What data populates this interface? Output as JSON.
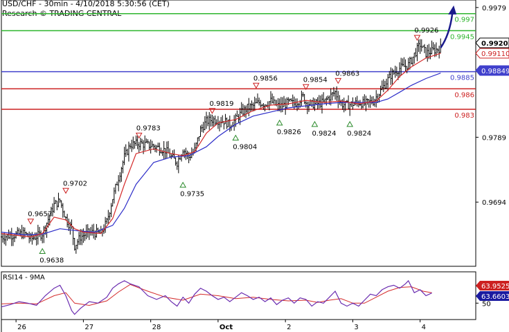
{
  "header": {
    "line1": "USD/CHF - 30min - 4/10/2018 5:30:56 (CET)",
    "line2": "Research © TRADING CENTRAL"
  },
  "colors": {
    "candle": "#000000",
    "ma_fast": "#d42a2a",
    "ma_slow": "#2c2cc8",
    "target": "#2db52d",
    "pivot": "#4040cc",
    "support": "#cc2020",
    "arrow": "#1a1a8c",
    "rsi": "#6a2cb0",
    "rsi_ma": "#d42a2a",
    "up_marker": "#2a8a2a",
    "down_marker": "#cc2020"
  },
  "chart_data": {
    "type": "candlestick",
    "symbol": "USD/CHF",
    "timeframe": "30min",
    "price_axis": {
      "ylim": [
        0.96,
        0.999
      ],
      "ticks": [
        "0.9979",
        "0.9789",
        "0.9694"
      ]
    },
    "x_labels": [
      {
        "label": "26",
        "t": 5
      },
      {
        "label": "27",
        "t": 28
      },
      {
        "label": "28",
        "t": 51
      },
      {
        "label": "Oct",
        "t": 74
      },
      {
        "label": "2",
        "t": 97
      },
      {
        "label": "3",
        "t": 120
      },
      {
        "label": "4",
        "t": 143
      }
    ],
    "price_path": [
      [
        0,
        0.9643
      ],
      [
        4,
        0.9646
      ],
      [
        8,
        0.9648
      ],
      [
        10,
        0.964
      ],
      [
        14,
        0.9648
      ],
      [
        18,
        0.969
      ],
      [
        20,
        0.9696
      ],
      [
        22,
        0.967
      ],
      [
        24,
        0.9655
      ],
      [
        25,
        0.963
      ],
      [
        27,
        0.9643
      ],
      [
        30,
        0.965
      ],
      [
        34,
        0.9648
      ],
      [
        36,
        0.9665
      ],
      [
        38,
        0.97
      ],
      [
        40,
        0.973
      ],
      [
        42,
        0.976
      ],
      [
        44,
        0.9778
      ],
      [
        47,
        0.978
      ],
      [
        52,
        0.9776
      ],
      [
        56,
        0.977
      ],
      [
        58,
        0.976
      ],
      [
        60,
        0.9752
      ],
      [
        62,
        0.9772
      ],
      [
        64,
        0.976
      ],
      [
        66,
        0.977
      ],
      [
        68,
        0.98
      ],
      [
        70,
        0.9812
      ],
      [
        72,
        0.9815
      ],
      [
        76,
        0.9813
      ],
      [
        78,
        0.9807
      ],
      [
        80,
        0.9815
      ],
      [
        82,
        0.9825
      ],
      [
        84,
        0.9832
      ],
      [
        86,
        0.9835
      ],
      [
        88,
        0.984
      ],
      [
        90,
        0.9838
      ],
      [
        92,
        0.9842
      ],
      [
        94,
        0.9835
      ],
      [
        96,
        0.9835
      ],
      [
        98,
        0.984
      ],
      [
        100,
        0.9838
      ],
      [
        103,
        0.9848
      ],
      [
        104,
        0.984
      ],
      [
        106,
        0.9837
      ],
      [
        110,
        0.984
      ],
      [
        112,
        0.9848
      ],
      [
        114,
        0.9855
      ],
      [
        116,
        0.9838
      ],
      [
        118,
        0.9836
      ],
      [
        122,
        0.984
      ],
      [
        124,
        0.9838
      ],
      [
        127,
        0.9842
      ],
      [
        130,
        0.986
      ],
      [
        133,
        0.988
      ],
      [
        136,
        0.989
      ],
      [
        139,
        0.9895
      ],
      [
        141,
        0.991
      ],
      [
        143,
        0.9925
      ],
      [
        145,
        0.9912
      ],
      [
        147,
        0.9915
      ],
      [
        150,
        0.992
      ]
    ],
    "ma_fast_path": [
      [
        0,
        0.9648
      ],
      [
        6,
        0.9645
      ],
      [
        10,
        0.9643
      ],
      [
        14,
        0.9648
      ],
      [
        18,
        0.9672
      ],
      [
        22,
        0.9668
      ],
      [
        25,
        0.9655
      ],
      [
        28,
        0.965
      ],
      [
        34,
        0.9648
      ],
      [
        38,
        0.967
      ],
      [
        42,
        0.972
      ],
      [
        46,
        0.9765
      ],
      [
        52,
        0.9772
      ],
      [
        58,
        0.9765
      ],
      [
        62,
        0.9762
      ],
      [
        66,
        0.9768
      ],
      [
        70,
        0.9795
      ],
      [
        74,
        0.981
      ],
      [
        80,
        0.9815
      ],
      [
        86,
        0.9828
      ],
      [
        92,
        0.9836
      ],
      [
        98,
        0.9838
      ],
      [
        104,
        0.9843
      ],
      [
        110,
        0.984
      ],
      [
        116,
        0.9842
      ],
      [
        122,
        0.9838
      ],
      [
        128,
        0.9842
      ],
      [
        132,
        0.9858
      ],
      [
        136,
        0.9878
      ],
      [
        140,
        0.9892
      ],
      [
        145,
        0.9905
      ],
      [
        150,
        0.9912
      ]
    ],
    "ma_slow_path": [
      [
        0,
        0.965
      ],
      [
        8,
        0.9646
      ],
      [
        14,
        0.9647
      ],
      [
        20,
        0.9655
      ],
      [
        26,
        0.9652
      ],
      [
        32,
        0.965
      ],
      [
        38,
        0.966
      ],
      [
        42,
        0.9685
      ],
      [
        46,
        0.972
      ],
      [
        52,
        0.9752
      ],
      [
        58,
        0.976
      ],
      [
        64,
        0.9762
      ],
      [
        70,
        0.9775
      ],
      [
        74,
        0.979
      ],
      [
        80,
        0.9808
      ],
      [
        86,
        0.982
      ],
      [
        92,
        0.9826
      ],
      [
        98,
        0.9832
      ],
      [
        104,
        0.9835
      ],
      [
        110,
        0.9838
      ],
      [
        116,
        0.984
      ],
      [
        122,
        0.984
      ],
      [
        128,
        0.984
      ],
      [
        132,
        0.9845
      ],
      [
        136,
        0.9855
      ],
      [
        140,
        0.9865
      ],
      [
        145,
        0.9875
      ],
      [
        150,
        0.9883
      ]
    ],
    "levels": [
      {
        "name": "target",
        "value": 0.997,
        "label": "0.997",
        "color": "#2db52d"
      },
      {
        "name": "target",
        "value": 0.9945,
        "label": "0.9945",
        "color": "#2db52d"
      },
      {
        "name": "pivot",
        "value": 0.9885,
        "label": "0.9885",
        "color": "#4040cc"
      },
      {
        "name": "resistance",
        "value": 0.986,
        "label": "0.986",
        "color": "#cc2020"
      },
      {
        "name": "resistance",
        "value": 0.983,
        "label": "0.983",
        "color": "#cc2020"
      }
    ],
    "price_badges": [
      {
        "value": 0.99202,
        "label": "0.99202",
        "style": "black"
      },
      {
        "value": 0.9911,
        "label": "0.99110",
        "style": "red"
      },
      {
        "value": 0.98849,
        "label": "0.98849",
        "style": "blue"
      }
    ],
    "projection": {
      "from": [
        150,
        0.992
      ],
      "to": [
        154,
        0.9978
      ]
    },
    "annotations": [
      {
        "label": "0.9657",
        "t": 10,
        "value": 0.9657,
        "kind": "high"
      },
      {
        "label": "0.9638",
        "t": 14,
        "value": 0.9638,
        "kind": "low"
      },
      {
        "label": "0.9702",
        "t": 22,
        "value": 0.9702,
        "kind": "high"
      },
      {
        "label": "0.9783",
        "t": 47,
        "value": 0.9783,
        "kind": "high"
      },
      {
        "label": "0.9735",
        "t": 62,
        "value": 0.9735,
        "kind": "low"
      },
      {
        "label": "0.9819",
        "t": 72,
        "value": 0.9819,
        "kind": "high"
      },
      {
        "label": "0.9804",
        "t": 80,
        "value": 0.9804,
        "kind": "low"
      },
      {
        "label": "0.9856",
        "t": 87,
        "value": 0.9856,
        "kind": "high"
      },
      {
        "label": "0.9826",
        "t": 95,
        "value": 0.9826,
        "kind": "low"
      },
      {
        "label": "0.9854",
        "t": 104,
        "value": 0.9854,
        "kind": "high"
      },
      {
        "label": "0.9824",
        "t": 107,
        "value": 0.9824,
        "kind": "low"
      },
      {
        "label": "0.9863",
        "t": 115,
        "value": 0.9863,
        "kind": "high"
      },
      {
        "label": "0.9824",
        "t": 119,
        "value": 0.9824,
        "kind": "low"
      },
      {
        "label": "0.9926",
        "t": 142,
        "value": 0.9926,
        "kind": "high"
      }
    ],
    "rsi": {
      "title": "RSI14 - 9MA",
      "ylim": [
        28,
        92
      ],
      "tick": "50",
      "tick_value": 50,
      "badges": [
        {
          "value": 63.9525,
          "label": "63.9525",
          "style": "red"
        },
        {
          "value": 63.6603,
          "label": "63.6603",
          "style": "blue"
        }
      ],
      "path": [
        [
          0,
          45
        ],
        [
          3,
          48
        ],
        [
          6,
          52
        ],
        [
          9,
          50
        ],
        [
          12,
          47
        ],
        [
          15,
          60
        ],
        [
          18,
          70
        ],
        [
          20,
          74
        ],
        [
          22,
          60
        ],
        [
          24,
          40
        ],
        [
          25,
          35
        ],
        [
          27,
          43
        ],
        [
          30,
          52
        ],
        [
          33,
          50
        ],
        [
          36,
          58
        ],
        [
          38,
          70
        ],
        [
          40,
          76
        ],
        [
          42,
          80
        ],
        [
          44,
          76
        ],
        [
          47,
          72
        ],
        [
          50,
          60
        ],
        [
          53,
          55
        ],
        [
          56,
          60
        ],
        [
          58,
          52
        ],
        [
          60,
          46
        ],
        [
          62,
          58
        ],
        [
          64,
          50
        ],
        [
          66,
          62
        ],
        [
          68,
          70
        ],
        [
          70,
          66
        ],
        [
          72,
          60
        ],
        [
          74,
          55
        ],
        [
          76,
          58
        ],
        [
          78,
          52
        ],
        [
          80,
          58
        ],
        [
          82,
          64
        ],
        [
          84,
          60
        ],
        [
          86,
          55
        ],
        [
          88,
          58
        ],
        [
          90,
          52
        ],
        [
          92,
          57
        ],
        [
          94,
          48
        ],
        [
          96,
          54
        ],
        [
          98,
          57
        ],
        [
          100,
          50
        ],
        [
          102,
          57
        ],
        [
          104,
          55
        ],
        [
          106,
          46
        ],
        [
          108,
          52
        ],
        [
          110,
          50
        ],
        [
          112,
          58
        ],
        [
          114,
          66
        ],
        [
          116,
          50
        ],
        [
          118,
          46
        ],
        [
          120,
          50
        ],
        [
          122,
          46
        ],
        [
          124,
          54
        ],
        [
          126,
          62
        ],
        [
          128,
          60
        ],
        [
          130,
          68
        ],
        [
          132,
          72
        ],
        [
          134,
          74
        ],
        [
          136,
          70
        ],
        [
          138,
          76
        ],
        [
          139,
          80
        ],
        [
          141,
          64
        ],
        [
          143,
          68
        ],
        [
          145,
          60
        ],
        [
          147,
          63.66
        ]
      ],
      "ma_path": [
        [
          0,
          49
        ],
        [
          6,
          50
        ],
        [
          12,
          49
        ],
        [
          18,
          60
        ],
        [
          22,
          64
        ],
        [
          25,
          50
        ],
        [
          30,
          47
        ],
        [
          36,
          53
        ],
        [
          40,
          65
        ],
        [
          44,
          75
        ],
        [
          50,
          66
        ],
        [
          56,
          58
        ],
        [
          62,
          54
        ],
        [
          68,
          62
        ],
        [
          74,
          60
        ],
        [
          80,
          56
        ],
        [
          86,
          58
        ],
        [
          92,
          55
        ],
        [
          98,
          53
        ],
        [
          104,
          54
        ],
        [
          108,
          51
        ],
        [
          112,
          54
        ],
        [
          116,
          56
        ],
        [
          120,
          50
        ],
        [
          124,
          50
        ],
        [
          128,
          58
        ],
        [
          132,
          66
        ],
        [
          136,
          71
        ],
        [
          140,
          72
        ],
        [
          144,
          66
        ],
        [
          147,
          63.95
        ]
      ]
    }
  }
}
